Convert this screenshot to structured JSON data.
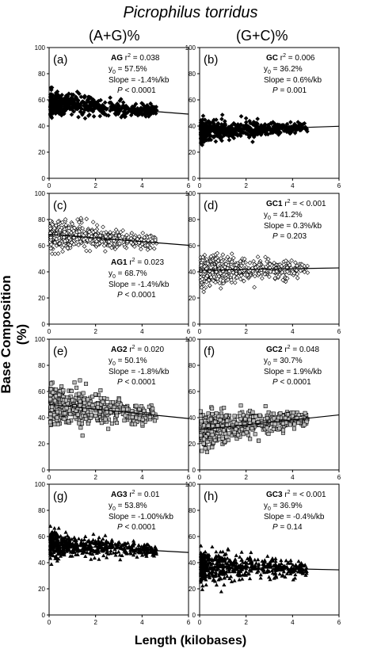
{
  "title": "Picrophilus torridus",
  "column_headers": [
    "(A+G)%",
    "(G+C)%"
  ],
  "ylabel": "Base Composition (%)",
  "xlabel": "Length (kilobases)",
  "chart_data": [
    {
      "type": "scatter",
      "panel": "(a)",
      "label": "AG",
      "r2": "0.038",
      "y0": "57.5%",
      "slope": "-1.4%/kb",
      "p": "< 0.0001",
      "intercept": 57.5,
      "slope_value": -1.4,
      "marker": "diamond-filled",
      "mean": 55,
      "spread": 4.5,
      "xlim": [
        0,
        6
      ],
      "ylim": [
        0,
        100
      ],
      "xticks": [
        0,
        2,
        4,
        6
      ],
      "yticks": [
        0,
        20,
        40,
        60,
        80,
        100
      ],
      "annotation_pos": "top-right"
    },
    {
      "type": "scatter",
      "panel": "(b)",
      "label": "GC",
      "r2": "0.006",
      "y0": "36.2%",
      "slope": "0.6%/kb",
      "p": "0.001",
      "intercept": 36.2,
      "slope_value": 0.6,
      "marker": "diamond-filled",
      "mean": 38,
      "spread": 4,
      "xlim": [
        0,
        6
      ],
      "ylim": [
        0,
        100
      ],
      "xticks": [
        0,
        2,
        4,
        6
      ],
      "yticks": [
        0,
        20,
        40,
        60,
        80,
        100
      ],
      "annotation_pos": "top-right"
    },
    {
      "type": "scatter",
      "panel": "(c)",
      "label": "AG1",
      "r2": "0.023",
      "y0": "68.7%",
      "slope": "-1.4%/kb",
      "p": "< 0.0001",
      "intercept": 68.7,
      "slope_value": -1.4,
      "marker": "diamond-open",
      "mean": 67,
      "spread": 6,
      "xlim": [
        0,
        6
      ],
      "ylim": [
        0,
        100
      ],
      "xticks": [
        0,
        2,
        4,
        6
      ],
      "yticks": [
        0,
        20,
        40,
        60,
        80,
        100
      ],
      "annotation_pos": "bottom-right"
    },
    {
      "type": "scatter",
      "panel": "(d)",
      "label": "GC1",
      "r2": "< 0.001",
      "y0": "41.2%",
      "slope": "0.3%/kb",
      "p": "0.203",
      "intercept": 41.2,
      "slope_value": 0.3,
      "marker": "diamond-open",
      "mean": 41,
      "spread": 6,
      "xlim": [
        0,
        6
      ],
      "ylim": [
        0,
        100
      ],
      "xticks": [
        0,
        2,
        4,
        6
      ],
      "yticks": [
        0,
        20,
        40,
        60,
        80,
        100
      ],
      "annotation_pos": "top-right"
    },
    {
      "type": "scatter",
      "panel": "(e)",
      "label": "AG2",
      "r2": "0.020",
      "y0": "50.1%",
      "slope": "-1.8%/kb",
      "p": "< 0.0001",
      "intercept": 50.1,
      "slope_value": -1.8,
      "marker": "square-grey",
      "mean": 47,
      "spread": 8,
      "xlim": [
        0,
        6
      ],
      "ylim": [
        0,
        100
      ],
      "xticks": [
        0,
        2,
        4,
        6
      ],
      "yticks": [
        0,
        20,
        40,
        60,
        80,
        100
      ],
      "annotation_pos": "top-right"
    },
    {
      "type": "scatter",
      "panel": "(f)",
      "label": "GC2",
      "r2": "0.048",
      "y0": "30.7%",
      "slope": "1.9%/kb",
      "p": "< 0.0001",
      "intercept": 30.7,
      "slope_value": 1.9,
      "marker": "square-grey",
      "mean": 33,
      "spread": 6.5,
      "xlim": [
        0,
        6
      ],
      "ylim": [
        0,
        100
      ],
      "xticks": [
        0,
        2,
        4,
        6
      ],
      "yticks": [
        0,
        20,
        40,
        60,
        80,
        100
      ],
      "annotation_pos": "top-right"
    },
    {
      "type": "scatter",
      "panel": "(g)",
      "label": "AG3",
      "r2": "0.01",
      "y0": "53.8%",
      "slope": "-1.00%/kb",
      "p": "< 0.0001",
      "intercept": 53.8,
      "slope_value": -1.0,
      "marker": "triangle-filled",
      "mean": 52,
      "spread": 5,
      "xlim": [
        0,
        6
      ],
      "ylim": [
        0,
        100
      ],
      "xticks": [
        0,
        2,
        4,
        6
      ],
      "yticks": [
        0,
        20,
        40,
        60,
        80,
        100
      ],
      "annotation_pos": "top-right"
    },
    {
      "type": "scatter",
      "panel": "(h)",
      "label": "GC3",
      "r2": "< 0.001",
      "y0": "36.9%",
      "slope": "-0.4%/kb",
      "p": "0.14",
      "intercept": 36.9,
      "slope_value": -0.4,
      "marker": "triangle-filled",
      "mean": 36,
      "spread": 6,
      "xlim": [
        0,
        6
      ],
      "ylim": [
        0,
        100
      ],
      "xticks": [
        0,
        2,
        4,
        6
      ],
      "yticks": [
        0,
        20,
        40,
        60,
        80,
        100
      ],
      "annotation_pos": "top-right"
    }
  ]
}
